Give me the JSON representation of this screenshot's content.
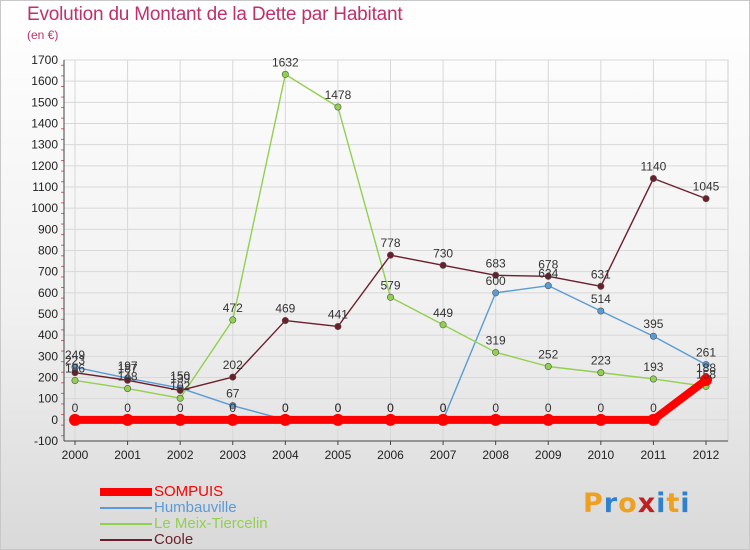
{
  "title": "Evolution du Montant de la Dette par Habitant",
  "unit": "(en €)",
  "logo": {
    "text": "Proxiti",
    "letter_colors": [
      "#f0a020",
      "#3080d0",
      "#f0a020",
      "#c02020",
      "#3080d0",
      "#f0a020",
      "#3080d0"
    ]
  },
  "chart_data": {
    "type": "line",
    "title": "Evolution du Montant de la Dette par Habitant",
    "ylabel": "(en €)",
    "xlabel": "",
    "x": [
      "2000",
      "2001",
      "2002",
      "2003",
      "2004",
      "2005",
      "2006",
      "2007",
      "2008",
      "2009",
      "2010",
      "2011",
      "2012"
    ],
    "ylim": [
      -100,
      1700
    ],
    "yticks": [
      -100,
      0,
      100,
      200,
      300,
      400,
      500,
      600,
      700,
      800,
      900,
      1000,
      1100,
      1200,
      1300,
      1400,
      1500,
      1600,
      1700
    ],
    "grid": true,
    "legend_position": "bottom-left",
    "series": [
      {
        "name": "SOMPUIS",
        "color": "#ff0000",
        "values": [
          0,
          0,
          0,
          0,
          0,
          0,
          0,
          0,
          0,
          0,
          0,
          0,
          188
        ]
      },
      {
        "name": "Humbauville",
        "color": "#5b9bd5",
        "values": [
          249,
          197,
          150,
          67,
          0,
          0,
          0,
          0,
          600,
          634,
          514,
          395,
          261
        ]
      },
      {
        "name": "Le Meix-Tiercelin",
        "color": "#92d050",
        "values": [
          186,
          148,
          102,
          472,
          1632,
          1478,
          579,
          449,
          319,
          252,
          223,
          193,
          158
        ]
      },
      {
        "name": "Coole",
        "color": "#6b1f2a",
        "values": [
          223,
          187,
          139,
          202,
          469,
          441,
          778,
          730,
          683,
          678,
          631,
          1140,
          1045
        ]
      }
    ]
  }
}
